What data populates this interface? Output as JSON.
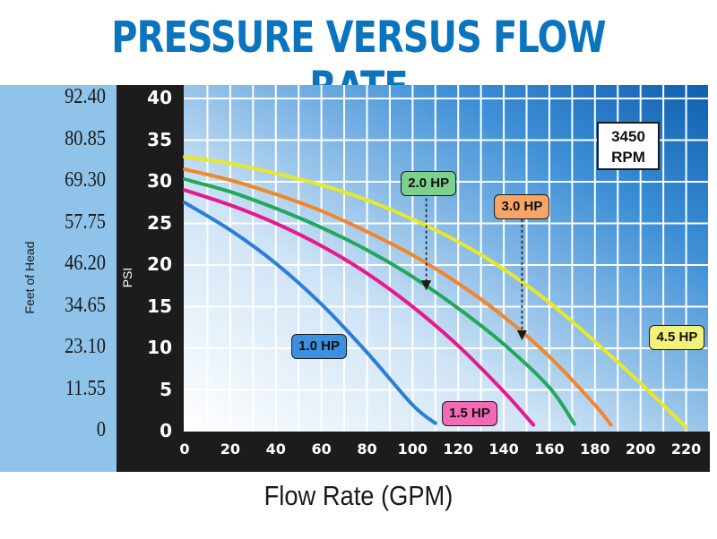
{
  "chart_data": {
    "type": "line",
    "title": "PRESSURE VERSUS FLOW RATE",
    "xlabel": "Flow Rate (GPM)",
    "ylabel": "PSI",
    "ylabel_secondary": "Feet of Head",
    "xlim": [
      0,
      230
    ],
    "ylim": [
      0,
      40
    ],
    "x_ticks": [
      0,
      20,
      40,
      60,
      80,
      100,
      120,
      140,
      160,
      180,
      200,
      220
    ],
    "y_ticks": [
      0,
      5,
      10,
      15,
      20,
      25,
      30,
      35,
      40
    ],
    "y_secondary_ticks": [
      "0",
      "11.55",
      "23.10",
      "34.65",
      "46.20",
      "57.75",
      "69.30",
      "80.85",
      "92.40"
    ],
    "grid": true,
    "annotation": {
      "line1": "3450",
      "line2": "RPM"
    },
    "series": [
      {
        "name": "1.0 HP",
        "color": "#2b7fd4",
        "x": [
          0,
          20,
          40,
          60,
          80,
          100,
          110
        ],
        "y": [
          27.5,
          24.2,
          20.2,
          15.3,
          9.5,
          3.2,
          1.0
        ]
      },
      {
        "name": "1.5 HP",
        "color": "#e8198b",
        "x": [
          0,
          20,
          40,
          60,
          80,
          100,
          120,
          140,
          153
        ],
        "y": [
          29.0,
          27.2,
          25.0,
          22.3,
          19.0,
          15.0,
          10.3,
          4.8,
          0.8
        ]
      },
      {
        "name": "2.0 HP",
        "color": "#22a85a",
        "x": [
          0,
          20,
          40,
          60,
          80,
          100,
          120,
          140,
          160,
          171
        ],
        "y": [
          30.3,
          28.8,
          26.8,
          24.5,
          21.8,
          18.6,
          14.8,
          10.5,
          5.3,
          0.9
        ]
      },
      {
        "name": "3.0 HP",
        "color": "#f2862a",
        "x": [
          0,
          20,
          40,
          60,
          80,
          100,
          120,
          140,
          160,
          180,
          187
        ],
        "y": [
          31.5,
          30.2,
          28.5,
          26.5,
          24.0,
          21.2,
          17.8,
          13.8,
          9.0,
          3.2,
          0.8
        ]
      },
      {
        "name": "4.5 HP",
        "color": "#e8e82a",
        "x": [
          0,
          20,
          40,
          60,
          80,
          100,
          120,
          140,
          160,
          180,
          200,
          220
        ],
        "y": [
          33.0,
          32.2,
          31.0,
          29.6,
          27.8,
          25.5,
          22.8,
          19.5,
          15.5,
          10.8,
          5.8,
          0.5
        ]
      }
    ],
    "badges": [
      {
        "label": "1.0 HP",
        "fill": "#3d8fe0",
        "x": 59,
        "y": 10.2
      },
      {
        "label": "1.5 HP",
        "fill": "#f06bb4",
        "x": 125,
        "y": 2.1
      },
      {
        "label": "2.0 HP",
        "fill": "#7dd08e",
        "x": 107,
        "y": 29.8
      },
      {
        "label": "3.0 HP",
        "fill": "#f6a567",
        "x": 148,
        "y": 27.0
      },
      {
        "label": "4.5 HP",
        "fill": "#f2f27a",
        "x": 216,
        "y": 11.3
      }
    ],
    "arrows": [
      {
        "series": "2.0 HP",
        "x": 106,
        "y_from": 28.0,
        "y_to": 17.2
      },
      {
        "series": "3.0 HP",
        "x": 148,
        "y_from": 25.5,
        "y_to": 11.2
      }
    ]
  }
}
